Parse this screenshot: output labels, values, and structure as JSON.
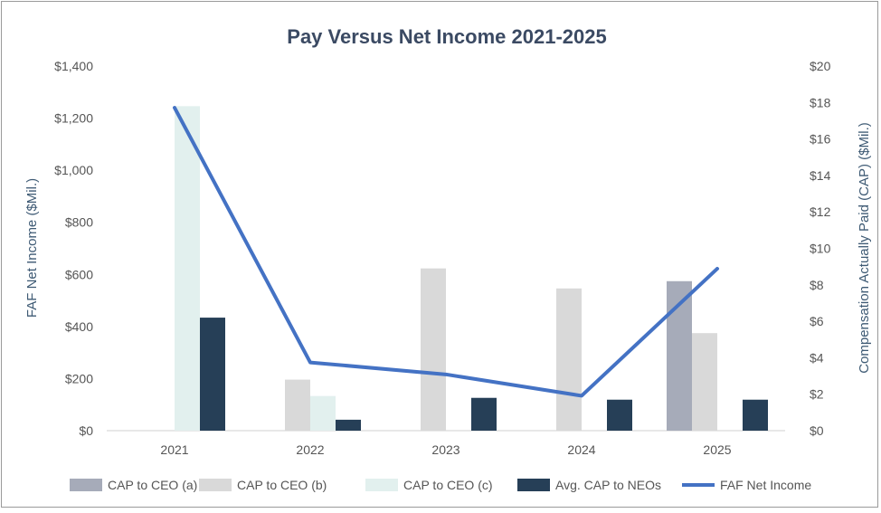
{
  "chart_data": {
    "type": "bar",
    "title": "Pay Versus Net Income 2021-2025",
    "categories": [
      "2021",
      "2022",
      "2023",
      "2024",
      "2025"
    ],
    "ylabel_left": "FAF Net Income ($Mil.)",
    "ylabel_right": "Compensation Actually Paid (CAP) ($Mil.)",
    "left_axis": {
      "min": 0,
      "max": 1400,
      "step": 200,
      "ticks": [
        "$0",
        "$200",
        "$400",
        "$600",
        "$800",
        "$1,000",
        "$1,200",
        "$1,400"
      ]
    },
    "right_axis": {
      "min": 0,
      "max": 20,
      "step": 2,
      "ticks": [
        "$0",
        "$2",
        "$4",
        "$6",
        "$8",
        "$10",
        "$12",
        "$14",
        "$16",
        "$18",
        "$20"
      ]
    },
    "grid": false,
    "legend_position": "bottom",
    "series": [
      {
        "name": "CAP to CEO (a)",
        "type": "bar",
        "axis": "right",
        "color": "#a6abb9",
        "values": [
          null,
          null,
          null,
          null,
          8.2
        ]
      },
      {
        "name": "CAP to CEO (b)",
        "type": "bar",
        "axis": "right",
        "color": "#d9d9d9",
        "values": [
          null,
          2.8,
          8.9,
          7.8,
          5.35
        ]
      },
      {
        "name": "CAP to CEO (c)",
        "type": "bar",
        "axis": "right",
        "color": "#e2f0ee",
        "values": [
          17.8,
          1.9,
          null,
          null,
          null
        ]
      },
      {
        "name": "Avg. CAP to NEOs",
        "type": "bar",
        "axis": "right",
        "color": "#263f57",
        "values": [
          6.2,
          0.6,
          1.8,
          1.7,
          1.7
        ]
      },
      {
        "name": "FAF Net Income",
        "type": "line",
        "axis": "left",
        "color": "#4472c4",
        "values": [
          1240,
          262,
          216,
          134,
          622
        ]
      }
    ]
  }
}
